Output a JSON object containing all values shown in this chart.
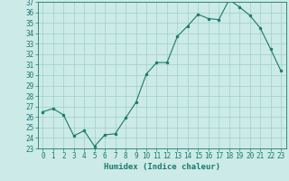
{
  "x_values": [
    0,
    1,
    2,
    3,
    4,
    5,
    6,
    7,
    8,
    9,
    10,
    11,
    12,
    13,
    14,
    15,
    16,
    17,
    18,
    19,
    20,
    21,
    22,
    23
  ],
  "y_values": [
    26.5,
    26.8,
    26.2,
    24.2,
    24.7,
    23.2,
    24.3,
    24.4,
    25.9,
    27.4,
    30.1,
    31.2,
    31.2,
    33.7,
    34.7,
    35.8,
    35.4,
    35.3,
    37.2,
    36.5,
    35.7,
    34.5,
    32.5,
    30.4
  ],
  "xlabel": "Humidex (Indice chaleur)",
  "ylim": [
    23,
    37
  ],
  "yticks": [
    23,
    24,
    25,
    26,
    27,
    28,
    29,
    30,
    31,
    32,
    33,
    34,
    35,
    36,
    37
  ],
  "xticks": [
    0,
    1,
    2,
    3,
    4,
    5,
    6,
    7,
    8,
    9,
    10,
    11,
    12,
    13,
    14,
    15,
    16,
    17,
    18,
    19,
    20,
    21,
    22,
    23
  ],
  "line_color": "#1a7a6e",
  "marker_color": "#1a7a6e",
  "bg_color": "#cceae7",
  "grid_color": "#9ecfcc",
  "axis_color": "#1a7a6e",
  "tick_color": "#1a7a6e",
  "label_color": "#1a7a6e",
  "tick_fontsize": 5.5,
  "xlabel_fontsize": 6.5
}
